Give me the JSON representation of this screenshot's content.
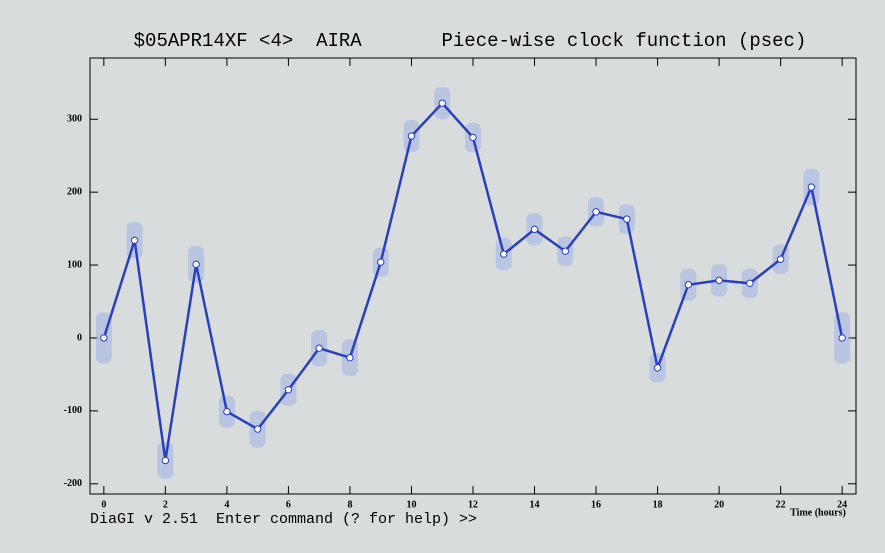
{
  "chart_data": {
    "type": "line",
    "title": "$05APR14XF <4>  AIRA       Piece-wise clock function (psec)",
    "xlabel": "Time (hours)",
    "footer": "DiaGI v 2.51  Enter command (? for help) >>",
    "x": [
      0,
      1,
      2,
      3,
      4,
      5,
      6,
      7,
      8,
      9,
      10,
      11,
      12,
      13,
      14,
      15,
      16,
      17,
      18,
      19,
      20,
      21,
      22,
      23,
      24
    ],
    "series": [
      {
        "color": "#2a3fc0",
        "band_color": "#9fb3e6",
        "values": [
          0,
          134,
          -168,
          101,
          -101,
          -125,
          -71,
          -14,
          -27,
          104,
          277,
          322,
          275,
          115,
          149,
          119,
          173,
          163,
          -41,
          73,
          79,
          75,
          108,
          207,
          0
        ],
        "errors": [
          35,
          25,
          25,
          25,
          22,
          25,
          22,
          25,
          25,
          20,
          22,
          22,
          20,
          22,
          22,
          20,
          20,
          20,
          20,
          22,
          22,
          20,
          20,
          25,
          35
        ]
      }
    ],
    "xlim": [
      -0.45,
      24.45
    ],
    "ylim": [
      -214,
      384
    ],
    "xticks": [
      0,
      2,
      4,
      6,
      8,
      10,
      12,
      14,
      16,
      18,
      20,
      22,
      24
    ],
    "yticks": [
      -200,
      -100,
      0,
      100,
      200,
      300
    ]
  }
}
